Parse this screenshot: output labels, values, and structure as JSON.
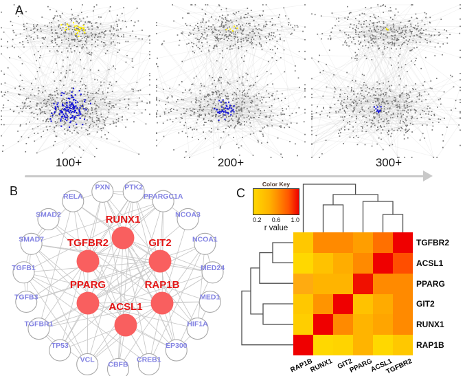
{
  "panel_a": {
    "label": "A",
    "networks": [
      {
        "label": "100+",
        "seed": 1,
        "yellow_count": 26,
        "blue_count": 130,
        "yellow_spread": 9,
        "blue_spread": 13
      },
      {
        "label": "200+",
        "seed": 2,
        "yellow_count": 5,
        "blue_count": 42,
        "yellow_spread": 4,
        "blue_spread": 7
      },
      {
        "label": "300+",
        "seed": 3,
        "yellow_count": 2,
        "blue_count": 12,
        "yellow_spread": 2,
        "blue_spread": 4
      }
    ],
    "arrow": {
      "direction": "right",
      "color": "#c9c9c9"
    },
    "colors": {
      "node_gray": "#757575",
      "cluster_yellow": "#ffee00",
      "cluster_blue": "#1616d6",
      "edge": "rgba(172,172,172,0.17)"
    }
  },
  "panel_b": {
    "label": "B",
    "hub_nodes": [
      "RUNX1",
      "TGFBR2",
      "GIT2",
      "PPARG",
      "RAP1B",
      "ACSL1"
    ],
    "outer_nodes": [
      "PXN",
      "PTK2",
      "PPARGC1A",
      "NCOA3",
      "NCOA1",
      "MED24",
      "MED1",
      "HIF1A",
      "EP300",
      "CREB1",
      "CBFB",
      "VCL",
      "TP53",
      "TGFBR1",
      "TGFB3",
      "TGFB1",
      "SMAD7",
      "SMAD2",
      "RELA"
    ],
    "colors": {
      "hub_fill": "#f95f5f",
      "hub_label": "#e31616",
      "outer_fill": "#ffffff",
      "outer_stroke": "#a7a7a7",
      "outer_label": "#8282e2",
      "edge": "#c9c9c9"
    }
  },
  "panel_c": {
    "label": "C",
    "color_key": {
      "title": "Color Key",
      "ticks": [
        "0.2",
        "0.6",
        "1.0"
      ],
      "axis_label": "r value",
      "gradient": [
        "#ffd800",
        "#ff8a00",
        "#ef0000"
      ]
    }
  },
  "chart_data": {
    "type": "heatmap",
    "title": "",
    "rows": [
      "TGFBR2",
      "ACSL1",
      "PPARG",
      "GIT2",
      "RUNX1",
      "RAP1B"
    ],
    "columns": [
      "RAP1B",
      "RUNX1",
      "GIT2",
      "PPARG",
      "ACSL1",
      "TGFBR2"
    ],
    "values_r": [
      [
        0.33,
        0.65,
        0.65,
        0.58,
        0.75,
        1.0
      ],
      [
        0.25,
        0.38,
        0.52,
        0.65,
        1.0,
        0.85
      ],
      [
        0.52,
        0.45,
        0.45,
        1.0,
        0.65,
        0.65
      ],
      [
        0.33,
        0.62,
        1.0,
        0.38,
        0.52,
        0.65
      ],
      [
        0.3,
        1.0,
        0.65,
        0.45,
        0.55,
        0.65
      ],
      [
        1.0,
        0.25,
        0.27,
        0.45,
        0.25,
        0.33
      ]
    ],
    "cell_colors": [
      [
        "#FFC800",
        "#FF8A00",
        "#FF8A00",
        "#FF9E00",
        "#FF7000",
        "#EF0000"
      ],
      [
        "#FFD800",
        "#FFC200",
        "#FFAD00",
        "#FF8A00",
        "#EF0000",
        "#FF4E00"
      ],
      [
        "#FFAB10",
        "#FFB400",
        "#FFB400",
        "#F01000",
        "#FF8A00",
        "#FF8A00"
      ],
      [
        "#FFC800",
        "#FF9400",
        "#EF0000",
        "#FFC200",
        "#FFAB00",
        "#FF8A00"
      ],
      [
        "#FFCE00",
        "#EF0000",
        "#FF8A00",
        "#FFB400",
        "#FFA500",
        "#FF8A00"
      ],
      [
        "#EF0000",
        "#FFD800",
        "#FFD400",
        "#FFB400",
        "#FFD800",
        "#FFC800"
      ]
    ],
    "colorbar": {
      "label": "r value",
      "ticks": [
        0.2,
        0.6,
        1.0
      ],
      "range": [
        0.2,
        1.0
      ]
    },
    "col_dendrogram": "(RAP1B,((RUNX1,GIT2),(PPARG,(ACSL1,TGFBR2))))",
    "row_dendrogram": "((((TGFBR2,ACSL1),PPARG),(GIT2,RUNX1)),RAP1B)",
    "legend_position": "top-left",
    "grid": false
  }
}
